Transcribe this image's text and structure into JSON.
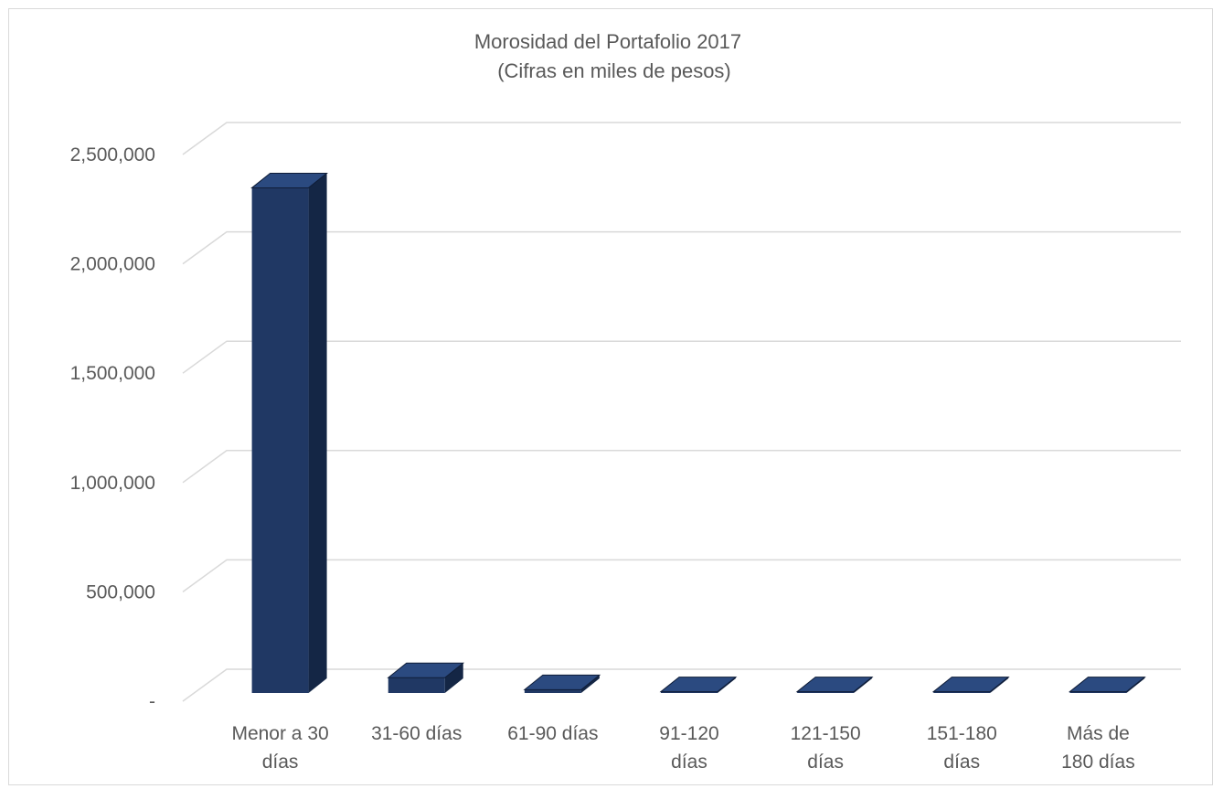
{
  "chart_data": {
    "type": "bar",
    "title": "Morosidad del Portafolio 2017",
    "subtitle": "(Cifras en miles de pesos)",
    "categories": [
      [
        "Menor a 30",
        "días"
      ],
      [
        "31-60 días"
      ],
      [
        "61-90 días"
      ],
      [
        "91-120",
        "días"
      ],
      [
        "121-150",
        "días"
      ],
      [
        "151-180",
        "días"
      ],
      [
        "Más de",
        "180 días"
      ]
    ],
    "values": [
      2310000,
      70000,
      15000,
      6000,
      6000,
      6000,
      6000
    ],
    "ylim": [
      0,
      2500000
    ],
    "yticks": [
      0,
      500000,
      1000000,
      1500000,
      2000000,
      2500000
    ],
    "ytick_labels": [
      "-",
      "500,000",
      "1,000,000",
      "1,500,000",
      "2,000,000",
      "2,500,000"
    ],
    "grid": true,
    "style": "3d-column",
    "colors": {
      "front": "#203864",
      "side": "#142645",
      "top": "#2b4a80",
      "grid": "#d9d9d9",
      "text": "#595959"
    }
  }
}
